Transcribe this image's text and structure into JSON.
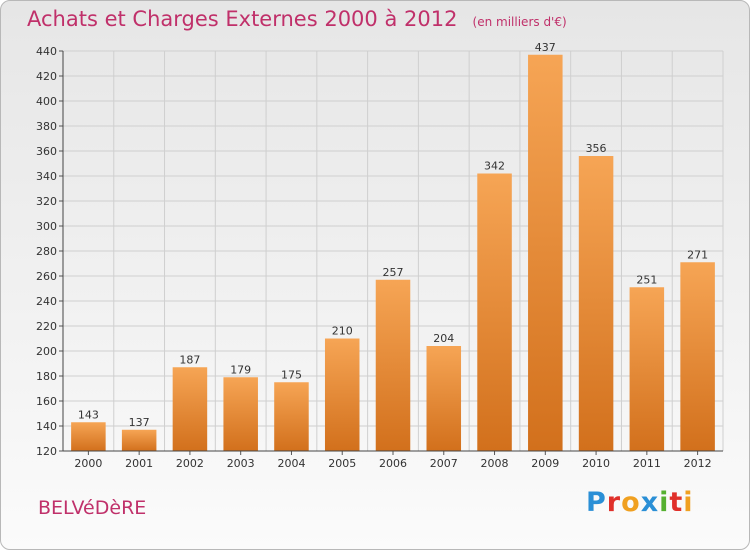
{
  "title": "Achats et Charges Externes 2000 à 2012",
  "subtitle": "(en milliers d'€)",
  "commune": "BELVéDèRE",
  "brand": {
    "letters": [
      {
        "char": "P",
        "color": "#2a8fd6"
      },
      {
        "char": "r",
        "color": "#e0302a"
      },
      {
        "char": "o",
        "color": "#f0a020"
      },
      {
        "char": "x",
        "color": "#2a8fd6"
      },
      {
        "char": "i",
        "color": "#55b030"
      },
      {
        "char": "t",
        "color": "#e0302a"
      },
      {
        "char": "i",
        "color": "#f0a020"
      }
    ]
  },
  "chart_data": {
    "type": "bar",
    "categories": [
      "2000",
      "2001",
      "2002",
      "2003",
      "2004",
      "2005",
      "2006",
      "2007",
      "2008",
      "2009",
      "2010",
      "2011",
      "2012"
    ],
    "values": [
      143,
      137,
      187,
      179,
      175,
      210,
      257,
      204,
      342,
      437,
      356,
      251,
      271
    ],
    "ylim": [
      120,
      440
    ],
    "yticks": [
      120,
      140,
      160,
      180,
      200,
      220,
      240,
      260,
      280,
      300,
      320,
      340,
      360,
      380,
      400,
      420,
      440
    ],
    "grid": true,
    "bar_color_top": "#f6a555",
    "bar_color_bottom": "#d2701c"
  }
}
